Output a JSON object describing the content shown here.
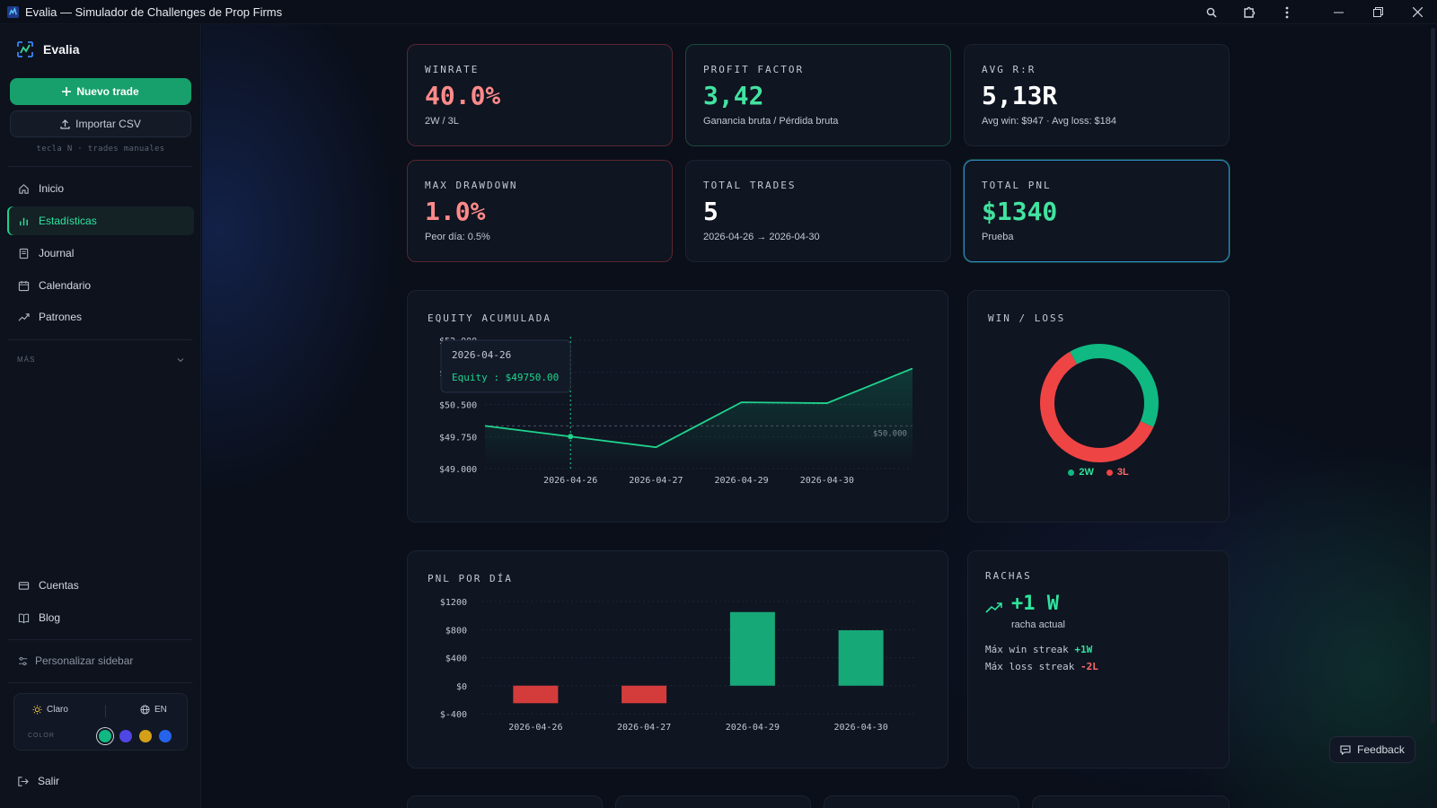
{
  "window": {
    "title": "Evalia — Simulador de Challenges de Prop Firms",
    "icons": [
      "search-icon",
      "extension-icon",
      "more-icon",
      "minimize-icon",
      "restore-icon",
      "close-icon"
    ]
  },
  "sidebar": {
    "brand": "Evalia",
    "new_trade": "Nuevo trade",
    "import_csv": "Importar CSV",
    "hint": "tecla N · trades manuales",
    "nav": [
      {
        "label": "Inicio",
        "icon": "home-icon"
      },
      {
        "label": "Estadísticas",
        "icon": "bar-chart-icon",
        "active": true
      },
      {
        "label": "Journal",
        "icon": "book-icon"
      },
      {
        "label": "Calendario",
        "icon": "calendar-icon"
      },
      {
        "label": "Patrones",
        "icon": "trend-icon"
      }
    ],
    "more_section": "MÁS",
    "bottom_nav": [
      {
        "label": "Cuentas",
        "icon": "card-icon"
      },
      {
        "label": "Blog",
        "icon": "open-book-icon"
      }
    ],
    "customize": "Personalizar sidebar",
    "theme_label": "Claro",
    "lang_label": "EN",
    "color_label": "COLOR",
    "colors": [
      "#10b981",
      "#4f46e5",
      "#d4a017",
      "#2563eb"
    ],
    "logout": "Salir"
  },
  "stats": {
    "winrate": {
      "label": "WINRATE",
      "value": "40.0%",
      "sub": "2W / 3L",
      "color": "#ff8a8a"
    },
    "profit_factor": {
      "label": "PROFIT FACTOR",
      "value": "3,42",
      "sub": "Ganancia bruta / Pérdida bruta",
      "color": "#42e3a0"
    },
    "avg_rr": {
      "label": "AVG R:R",
      "value": "5,13R",
      "sub": "Avg win: $947 · Avg loss: $184",
      "color": "#ffffff"
    },
    "max_dd": {
      "label": "MAX DRAWDOWN",
      "value": "1.0%",
      "sub": "Peor día: 0.5%",
      "color": "#ff8a8a"
    },
    "total_trades": {
      "label": "TOTAL TRADES",
      "value": "5",
      "sub": "2026-04-26 → 2026-04-30",
      "color": "#ffffff"
    },
    "total_pnl": {
      "label": "TOTAL PNL",
      "value": "$1340",
      "sub": "Prueba",
      "color": "#42e3a0"
    }
  },
  "equity": {
    "title": "EQUITY ACUMULADA",
    "y_ticks": [
      "$49.000",
      "$49.750",
      "$50.500",
      "$51.250",
      "$52.000"
    ],
    "y_tick_values": [
      49000,
      49750,
      50500,
      51250,
      52000
    ],
    "x_labels": [
      "2026-04-26",
      "2026-04-27",
      "2026-04-29",
      "2026-04-30"
    ],
    "baseline_label": "$50.000",
    "tooltip_date": "2026-04-26",
    "tooltip_text": "Equity : $49750.00"
  },
  "chart_data": [
    {
      "type": "line",
      "x": [
        "",
        "2026-04-26",
        "2026-04-27",
        "2026-04-29",
        "2026-04-30",
        ""
      ],
      "values": [
        50000,
        49750,
        49500,
        50550,
        50530,
        51340
      ],
      "ylim": [
        49000,
        52000
      ],
      "reference_line": 50000,
      "grid": true
    },
    {
      "type": "pie",
      "categories": [
        "2W",
        "3L"
      ],
      "values": [
        2,
        3
      ],
      "colors": [
        "#10b981",
        "#ef4444"
      ],
      "legend": "bottom"
    },
    {
      "type": "bar",
      "categories": [
        "2026-04-26",
        "2026-04-27",
        "2026-04-29",
        "2026-04-30"
      ],
      "values": [
        -250,
        -250,
        1050,
        790
      ],
      "y_ticks": [
        "$-400",
        "$0",
        "$400",
        "$800",
        "$1200"
      ],
      "ylim": [
        -400,
        1200
      ],
      "grid": true
    }
  ],
  "winloss": {
    "title": "WIN / LOSS",
    "win_label": "2W",
    "loss_label": "3L"
  },
  "pnl_day": {
    "title": "PNL POR DÍA"
  },
  "rachas": {
    "title": "RACHAS",
    "current": "+1 W",
    "current_sub": "racha actual",
    "max_win_label": "Máx win streak",
    "max_win_value": "+1W",
    "max_loss_label": "Máx loss streak",
    "max_loss_value": "-2L"
  },
  "feedback": "Feedback"
}
